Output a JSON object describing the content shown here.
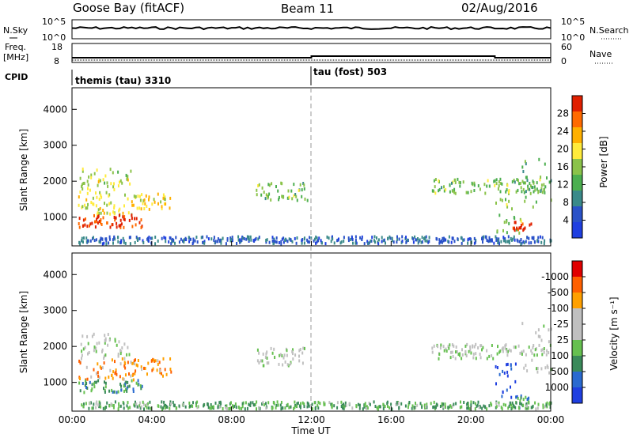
{
  "header": {
    "station": "Goose Bay (fitACF)",
    "beam": "Beam 11",
    "date": "02/Aug/2016"
  },
  "noise_panel": {
    "left_label": "N.Sky",
    "right_label": "N.Search",
    "left_ticks": [
      "10^5",
      "10^0"
    ],
    "right_ticks": [
      "10^5",
      "10^0"
    ],
    "line_color": "#000000"
  },
  "freq_panel": {
    "left_label_1": "Freq.",
    "left_label_2": "[MHz]",
    "right_label": "Nave",
    "left_ticks": [
      "18",
      "8"
    ],
    "right_ticks": [
      "60",
      "0"
    ]
  },
  "cpid": {
    "label": "CPID",
    "segments": [
      {
        "name": "themis (tau) 3310",
        "start_hour": 0
      },
      {
        "name": "tau (fost) 503",
        "start_hour": 12
      }
    ]
  },
  "time_axis": {
    "ticks": [
      "00:00",
      "04:00",
      "08:00",
      "12:00",
      "16:00",
      "20:00",
      "00:00"
    ],
    "label": "Time UT",
    "range_hours": [
      0,
      24
    ]
  },
  "chart_data": [
    {
      "type": "heatmap",
      "name": "power",
      "ylabel": "Slant Range [km]",
      "ylim": [
        200,
        4600
      ],
      "yticks": [
        1000,
        2000,
        3000,
        4000
      ],
      "colorbar": {
        "label": "Power [dB]",
        "ticks": [
          "4",
          "8",
          "12",
          "16",
          "20",
          "24",
          "28"
        ],
        "colors": [
          "#1f3fe0",
          "#2a52c8",
          "#3a8a8a",
          "#4caf50",
          "#8bc34a",
          "#ffeb3b",
          "#ffb000",
          "#ff6a00",
          "#e02000"
        ]
      },
      "regions": [
        {
          "t0": 0.3,
          "t1": 3.0,
          "r0": 1700,
          "r1": 2400,
          "level": 0.55
        },
        {
          "t0": 0.3,
          "t1": 3.2,
          "r0": 1100,
          "r1": 1700,
          "level": 0.6
        },
        {
          "t0": 0.3,
          "t1": 3.5,
          "r0": 750,
          "r1": 1100,
          "level": 0.92
        },
        {
          "t0": 3.0,
          "t1": 5.0,
          "r0": 1200,
          "r1": 1700,
          "level": 0.65
        },
        {
          "t0": 9.2,
          "t1": 11.8,
          "r0": 1500,
          "r1": 2000,
          "level": 0.45
        },
        {
          "t0": 18.0,
          "t1": 23.8,
          "r0": 1700,
          "r1": 2100,
          "level": 0.45
        },
        {
          "t0": 21.2,
          "t1": 22.5,
          "r0": 600,
          "r1": 1600,
          "level": 0.5
        },
        {
          "t0": 22.0,
          "t1": 23.0,
          "r0": 650,
          "r1": 900,
          "level": 0.95
        },
        {
          "t0": 22.5,
          "t1": 24.0,
          "r0": 1300,
          "r1": 2700,
          "level": 0.4
        },
        {
          "t0": 0.3,
          "t1": 24.0,
          "r0": 300,
          "r1": 500,
          "level": 0.2
        }
      ]
    },
    {
      "type": "heatmap",
      "name": "velocity",
      "ylabel": "Slant Range [km]",
      "ylim": [
        200,
        4600
      ],
      "yticks": [
        1000,
        2000,
        3000,
        4000
      ],
      "colorbar": {
        "label": "Velocity [m s⁻¹]",
        "ticks": [
          "1000",
          "500",
          "100",
          "25",
          "-25",
          "-100",
          "-500",
          "-1000"
        ],
        "colors": [
          "#1f3fe0",
          "#2a6ad0",
          "#3a8a5a",
          "#66c050",
          "#c0c0c0",
          "#c0c0c0",
          "#ffa000",
          "#ff6000",
          "#e00000"
        ]
      },
      "regions": [
        {
          "t0": 0.3,
          "t1": 3.0,
          "r0": 1700,
          "r1": 2400,
          "level": 0.5
        },
        {
          "t0": 0.3,
          "t1": 3.2,
          "r0": 1100,
          "r1": 1700,
          "level": 0.75
        },
        {
          "t0": 0.3,
          "t1": 3.5,
          "r0": 750,
          "r1": 1100,
          "level": 0.3
        },
        {
          "t0": 3.0,
          "t1": 5.0,
          "r0": 1200,
          "r1": 1700,
          "level": 0.75
        },
        {
          "t0": 9.2,
          "t1": 11.8,
          "r0": 1500,
          "r1": 2000,
          "level": 0.5
        },
        {
          "t0": 18.0,
          "t1": 23.8,
          "r0": 1700,
          "r1": 2100,
          "level": 0.5
        },
        {
          "t0": 21.2,
          "t1": 22.5,
          "r0": 600,
          "r1": 1600,
          "level": 0.05
        },
        {
          "t0": 22.0,
          "t1": 23.0,
          "r0": 300,
          "r1": 700,
          "level": 0.3
        },
        {
          "t0": 22.5,
          "t1": 24.0,
          "r0": 1300,
          "r1": 2700,
          "level": 0.5
        },
        {
          "t0": 0.3,
          "t1": 24.0,
          "r0": 300,
          "r1": 500,
          "level": 0.35
        }
      ]
    }
  ]
}
